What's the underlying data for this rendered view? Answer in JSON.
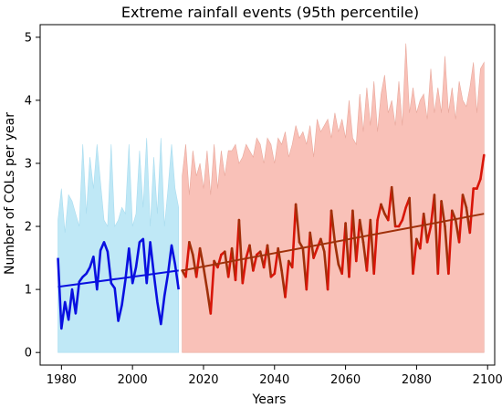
{
  "chart_data": {
    "type": "line",
    "title": "Extreme rainfall events (95th percentile)",
    "xlabel": "Years",
    "ylabel": "Number of COLs per year",
    "xlim": [
      1974,
      2102
    ],
    "ylim": [
      -0.2,
      5.2
    ],
    "xticks": [
      1980,
      2000,
      2020,
      2040,
      2060,
      2080,
      2100
    ],
    "yticks": [
      0,
      1,
      2,
      3,
      4,
      5
    ],
    "grid": false,
    "legend": "none",
    "colors": {
      "hist_line": "#0a10e0",
      "hist_band": "#bfe8f6",
      "fut_line": "#d81508",
      "fut_line_dark": "#a0300a",
      "fut_band": "#f9c1b8",
      "fut_band_edge": "#e8a89c"
    },
    "series": [
      {
        "x": [
          1979,
          1980,
          1981,
          1982,
          1983,
          1984,
          1985,
          1986,
          1987,
          1988,
          1989,
          1990,
          1991,
          1992,
          1993,
          1994,
          1995,
          1996,
          1997,
          1998,
          1999,
          2000,
          2001,
          2002,
          2003,
          2004,
          2005,
          2006,
          2007,
          2008,
          2009,
          2010,
          2011,
          2012,
          2013
        ],
        "values": [
          1.5,
          0.38,
          0.8,
          0.52,
          1.0,
          0.62,
          1.12,
          1.2,
          1.25,
          1.35,
          1.52,
          1.0,
          1.62,
          1.75,
          1.6,
          1.1,
          1.02,
          0.5,
          0.75,
          1.15,
          1.65,
          1.1,
          1.35,
          1.75,
          1.8,
          1.1,
          1.75,
          1.25,
          0.8,
          0.45,
          0.9,
          1.25,
          1.7,
          1.4,
          1.0
        ],
        "lower": [
          0,
          0,
          0,
          0,
          0,
          0,
          0,
          0,
          0,
          0,
          0,
          0,
          0,
          0,
          0,
          0,
          0,
          0,
          0,
          0,
          0,
          0,
          0,
          0,
          0,
          0,
          0,
          0,
          0,
          0,
          0,
          0,
          0,
          0,
          0
        ],
        "upper": [
          2.1,
          2.6,
          1.9,
          2.5,
          2.4,
          2.2,
          2.0,
          3.3,
          2.2,
          3.1,
          2.6,
          3.3,
          2.7,
          2.1,
          2.0,
          3.3,
          2.0,
          2.1,
          2.3,
          2.2,
          3.3,
          2.0,
          2.2,
          3.2,
          2.3,
          3.4,
          2.0,
          3.1,
          2.2,
          3.4,
          2.0,
          2.6,
          3.3,
          2.6,
          2.3
        ]
      },
      {
        "x": [
          1979,
          2013
        ],
        "values": [
          1.04,
          1.3
        ]
      },
      {
        "x": [
          2014,
          2015,
          2016,
          2017,
          2018,
          2019,
          2020,
          2021,
          2022,
          2023,
          2024,
          2025,
          2026,
          2027,
          2028,
          2029,
          2030,
          2031,
          2032,
          2033,
          2034,
          2035,
          2036,
          2037,
          2038,
          2039,
          2040,
          2041,
          2042,
          2043,
          2044,
          2045,
          2046,
          2047,
          2048,
          2049,
          2050,
          2051,
          2052,
          2053,
          2054,
          2055,
          2056,
          2057,
          2058,
          2059,
          2060,
          2061,
          2062,
          2063,
          2064,
          2065,
          2066,
          2067,
          2068,
          2069,
          2070,
          2071,
          2072,
          2073,
          2074,
          2075,
          2076,
          2077,
          2078,
          2079,
          2080,
          2081,
          2082,
          2083,
          2084,
          2085,
          2086,
          2087,
          2088,
          2089,
          2090,
          2091,
          2092,
          2093,
          2094,
          2095,
          2096,
          2097,
          2098,
          2099
        ],
        "values": [
          1.3,
          1.2,
          1.75,
          1.55,
          1.2,
          1.65,
          1.35,
          1.0,
          0.62,
          1.45,
          1.35,
          1.55,
          1.6,
          1.2,
          1.65,
          1.15,
          2.1,
          1.1,
          1.5,
          1.7,
          1.3,
          1.55,
          1.6,
          1.35,
          1.7,
          1.2,
          1.25,
          1.65,
          1.3,
          0.88,
          1.45,
          1.35,
          2.35,
          1.75,
          1.65,
          1.0,
          1.9,
          1.5,
          1.65,
          1.8,
          1.6,
          1.0,
          2.25,
          1.75,
          1.4,
          1.25,
          2.05,
          1.2,
          2.25,
          1.45,
          2.1,
          1.75,
          1.3,
          2.1,
          1.25,
          2.1,
          2.35,
          2.2,
          2.1,
          2.62,
          2.0,
          2.0,
          2.1,
          2.3,
          2.45,
          1.25,
          1.8,
          1.65,
          2.2,
          1.75,
          2.0,
          2.5,
          1.25,
          2.4,
          2.0,
          1.25,
          2.25,
          2.1,
          1.75,
          2.5,
          2.3,
          1.9,
          2.6,
          2.6,
          2.75,
          3.13
        ],
        "lower": [
          0,
          0,
          0,
          0,
          0,
          0,
          0,
          0,
          0,
          0,
          0,
          0,
          0,
          0,
          0,
          0,
          0,
          0,
          0,
          0,
          0,
          0,
          0,
          0,
          0,
          0,
          0,
          0,
          0,
          0,
          0,
          0,
          0,
          0,
          0,
          0,
          0,
          0,
          0,
          0,
          0,
          0,
          0,
          0,
          0,
          0,
          0,
          0,
          0,
          0,
          0,
          0,
          0,
          0,
          0,
          0,
          0,
          0,
          0,
          0,
          0,
          0,
          0,
          0,
          0,
          0,
          0,
          0,
          0,
          0,
          0,
          0,
          0,
          0,
          0,
          0,
          0,
          0,
          0,
          0,
          0,
          0,
          0,
          0,
          0,
          0
        ],
        "upper": [
          2.8,
          3.3,
          2.5,
          3.2,
          2.8,
          3.0,
          2.6,
          3.2,
          2.5,
          3.3,
          2.6,
          3.2,
          2.8,
          3.2,
          3.2,
          3.3,
          3.0,
          3.1,
          3.3,
          3.2,
          3.1,
          3.4,
          3.3,
          3.0,
          3.4,
          3.3,
          3.0,
          3.4,
          3.3,
          3.5,
          3.1,
          3.3,
          3.6,
          3.4,
          3.5,
          3.3,
          3.6,
          3.1,
          3.7,
          3.5,
          3.6,
          3.7,
          3.4,
          3.8,
          3.5,
          3.7,
          3.4,
          4.0,
          3.4,
          3.3,
          4.1,
          3.5,
          4.2,
          3.6,
          4.3,
          3.5,
          4.1,
          4.4,
          3.8,
          4.0,
          3.6,
          4.3,
          3.6,
          4.9,
          3.8,
          4.2,
          3.8,
          4.0,
          4.1,
          3.7,
          4.5,
          3.8,
          4.2,
          3.8,
          4.7,
          3.8,
          4.2,
          3.7,
          4.3,
          4.0,
          3.9,
          4.2,
          4.6,
          3.8,
          4.5,
          4.6
        ]
      },
      {
        "x": [
          2014,
          2099
        ],
        "values": [
          1.3,
          2.2
        ]
      }
    ]
  }
}
